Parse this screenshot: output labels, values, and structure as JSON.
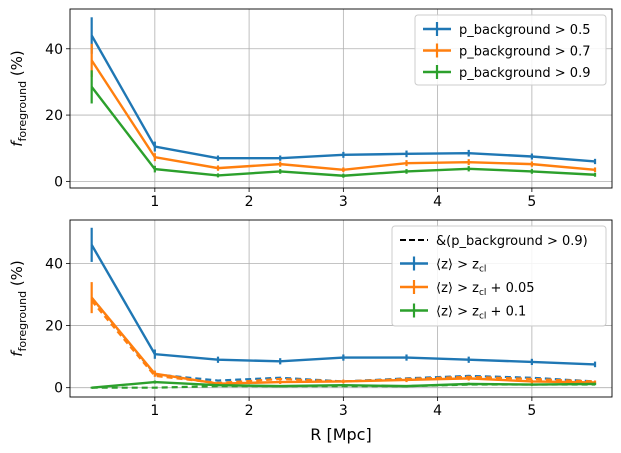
{
  "chart_data": [
    {
      "type": "line",
      "ylabel_main": "f",
      "ylabel_sub": "foreground",
      "ylabel_unit": " (%)",
      "xlim": [
        0.1,
        5.85
      ],
      "ylim": [
        -2,
        52
      ],
      "xticks": [
        1,
        2,
        3,
        4,
        5
      ],
      "yticks": [
        0,
        20,
        40
      ],
      "grid": true,
      "legend_position": "top-right",
      "x": [
        0.33,
        1.0,
        1.67,
        2.33,
        3.0,
        3.67,
        4.33,
        5.0,
        5.67
      ],
      "series": [
        {
          "name": "p_background > 0.5",
          "color": "#1f77b4",
          "values": [
            44.0,
            10.5,
            7.0,
            7.0,
            8.0,
            8.3,
            8.5,
            7.5,
            6.0
          ],
          "errors": [
            5.5,
            1.5,
            0.8,
            0.8,
            0.9,
            1.0,
            1.0,
            0.9,
            0.8
          ]
        },
        {
          "name": "p_background > 0.7",
          "color": "#ff7f0e",
          "values": [
            36.5,
            7.3,
            4.0,
            5.2,
            3.5,
            5.5,
            5.8,
            5.2,
            3.5
          ],
          "errors": [
            5.0,
            1.2,
            0.8,
            0.8,
            0.7,
            0.9,
            0.9,
            0.8,
            0.7
          ]
        },
        {
          "name": "p_background > 0.9",
          "color": "#2ca02c",
          "values": [
            28.5,
            3.7,
            1.8,
            3.0,
            1.7,
            3.0,
            3.8,
            3.0,
            2.0
          ],
          "errors": [
            5.0,
            1.0,
            0.6,
            0.7,
            0.6,
            0.7,
            0.8,
            0.7,
            0.6
          ]
        }
      ]
    },
    {
      "type": "line",
      "xlabel": "R [Mpc]",
      "ylabel_main": "f",
      "ylabel_sub": "foreground",
      "ylabel_unit": " (%)",
      "xlim": [
        0.1,
        5.85
      ],
      "ylim": [
        -3,
        54
      ],
      "xticks": [
        1,
        2,
        3,
        4,
        5
      ],
      "yticks": [
        0,
        20,
        40
      ],
      "grid": true,
      "legend_position": "top-right",
      "x": [
        0.33,
        1.0,
        1.67,
        2.33,
        3.0,
        3.67,
        4.33,
        5.0,
        5.67
      ],
      "dashed_series": [
        {
          "color": "#1f77b4",
          "values": [
            29.0,
            4.3,
            2.3,
            3.2,
            2.0,
            3.0,
            3.8,
            3.2,
            2.0
          ]
        },
        {
          "color": "#ff7f0e",
          "values": [
            28.0,
            3.8,
            1.5,
            2.8,
            2.0,
            2.8,
            3.5,
            2.8,
            2.0
          ]
        },
        {
          "color": "#2ca02c",
          "values": [
            0.0,
            0.0,
            0.5,
            0.5,
            0.5,
            0.5,
            1.0,
            1.0,
            1.0
          ]
        }
      ],
      "dashed_legend": {
        "name": "&(p_background > 0.9)",
        "color": "#000000"
      },
      "series": [
        {
          "name": "⟨z⟩ > z",
          "name_sub": "cl",
          "name_suffix": "",
          "color": "#1f77b4",
          "values": [
            46.0,
            10.8,
            9.0,
            8.5,
            9.7,
            9.7,
            9.0,
            8.3,
            7.5
          ],
          "errors": [
            5.5,
            1.5,
            1.0,
            1.0,
            1.0,
            1.0,
            1.0,
            1.0,
            0.9
          ]
        },
        {
          "name": "⟨z⟩ > z",
          "name_sub": "cl",
          "name_suffix": " + 0.05",
          "color": "#ff7f0e",
          "values": [
            29.0,
            4.5,
            1.3,
            1.8,
            2.0,
            2.5,
            3.0,
            2.0,
            1.7
          ],
          "errors": [
            5.0,
            1.0,
            0.6,
            0.6,
            0.6,
            0.7,
            0.7,
            0.6,
            0.6
          ]
        },
        {
          "name": "⟨z⟩ > z",
          "name_sub": "cl",
          "name_suffix": " + 0.1",
          "color": "#2ca02c",
          "values": [
            0.0,
            1.8,
            0.8,
            0.5,
            0.8,
            0.5,
            1.2,
            1.0,
            1.2
          ],
          "errors": [
            0.3,
            0.5,
            0.4,
            0.3,
            0.4,
            0.3,
            0.4,
            0.4,
            0.4
          ]
        }
      ]
    }
  ]
}
